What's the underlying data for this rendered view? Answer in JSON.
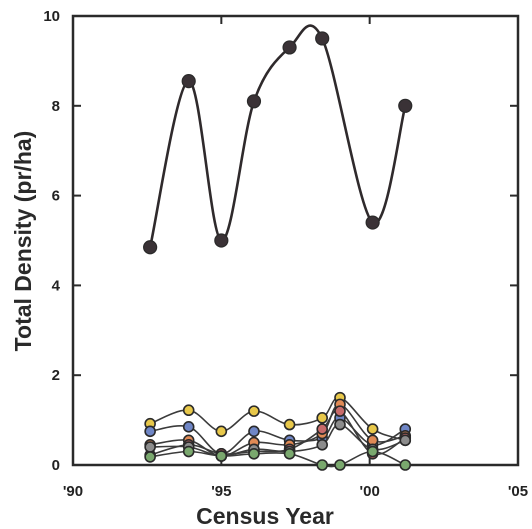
{
  "chart_data": {
    "type": "line",
    "title": "",
    "xlabel": "Census Year",
    "ylabel": "Total Density (pr/ha)",
    "xlim": [
      1990,
      2005
    ],
    "ylim": [
      0,
      10
    ],
    "x_ticks": [
      {
        "value": 1990,
        "label": "'90"
      },
      {
        "value": 1995,
        "label": "'95"
      },
      {
        "value": 2000,
        "label": "'00"
      },
      {
        "value": 2005,
        "label": "'05"
      }
    ],
    "y_ticks": [
      {
        "value": 0,
        "label": "0"
      },
      {
        "value": 2,
        "label": "2"
      },
      {
        "value": 4,
        "label": "4"
      },
      {
        "value": 6,
        "label": "6"
      },
      {
        "value": 8,
        "label": "8"
      },
      {
        "value": 10,
        "label": "10"
      }
    ],
    "grid": false,
    "legend": "none",
    "series": [
      {
        "color": "#3a3236",
        "marker_size": "large",
        "x": [
          1992.6,
          1993.9,
          1995.0,
          1996.1,
          1997.3,
          1998.4,
          2000.1,
          2001.2
        ],
        "y": [
          4.85,
          8.55,
          5.0,
          8.1,
          9.3,
          9.5,
          5.4,
          8.0
        ]
      },
      {
        "color": "#e8c84a",
        "x": [
          1992.6,
          1993.9,
          1995.0,
          1996.1,
          1997.3,
          1998.4,
          1999.0,
          2000.1,
          2001.2
        ],
        "y": [
          0.92,
          1.22,
          0.75,
          1.2,
          0.9,
          1.05,
          1.5,
          0.8,
          0.55
        ]
      },
      {
        "color": "#6f86c6",
        "x": [
          1992.6,
          1993.9,
          1995.0,
          1996.1,
          1997.3,
          1998.4,
          1999.0,
          2000.1,
          2001.2
        ],
        "y": [
          0.75,
          0.85,
          0.25,
          0.75,
          0.55,
          0.6,
          1.05,
          0.45,
          0.8
        ]
      },
      {
        "color": "#e08a55",
        "x": [
          1992.6,
          1993.9,
          1995.0,
          1996.1,
          1997.3,
          1998.4,
          1999.0,
          2000.1,
          2001.2
        ],
        "y": [
          0.45,
          0.55,
          0.2,
          0.5,
          0.45,
          0.7,
          1.35,
          0.55,
          0.65
        ]
      },
      {
        "color": "#c86a6a",
        "x": [
          1992.6,
          1993.9,
          1995.0,
          1996.1,
          1997.3,
          1998.4,
          1999.0,
          2000.1,
          2001.2
        ],
        "y": [
          0.22,
          0.45,
          0.25,
          0.3,
          0.35,
          0.8,
          1.2,
          0.25,
          0.6
        ]
      },
      {
        "color": "#8c8c8c",
        "x": [
          1992.6,
          1993.9,
          1995.0,
          1996.1,
          1997.3,
          1998.4,
          1999.0,
          2000.1,
          2001.2
        ],
        "y": [
          0.4,
          0.4,
          0.2,
          0.35,
          0.3,
          0.45,
          0.9,
          0.35,
          0.55
        ]
      },
      {
        "color": "#7aa86e",
        "x": [
          1992.6,
          1993.9,
          1995.0,
          1996.1,
          1997.3,
          1998.4,
          1999.0,
          2000.1,
          2001.2
        ],
        "y": [
          0.18,
          0.3,
          0.2,
          0.25,
          0.25,
          0.0,
          0.0,
          0.3,
          0.0
        ]
      }
    ]
  }
}
